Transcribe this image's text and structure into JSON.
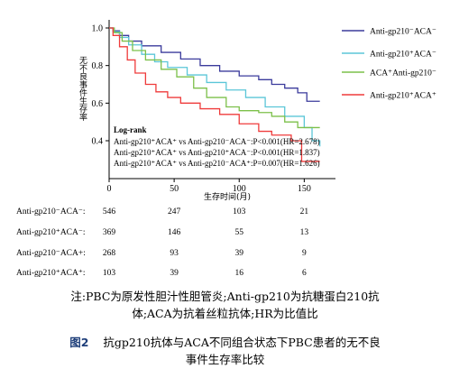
{
  "chart_data": {
    "type": "line",
    "title": "",
    "xlabel": "生存时间(月)",
    "ylabel": "无不良事件生存率",
    "xlim": [
      0,
      165
    ],
    "ylim": [
      0.33,
      1.02
    ],
    "x_ticks": [
      "0",
      "50",
      "100",
      "150"
    ],
    "y_ticks": [
      "0.4",
      "0.6",
      "0.8",
      "1.0"
    ],
    "grid": false,
    "legend_position": "right",
    "series": [
      {
        "name": "Anti-gp210⁻ACA⁻",
        "color": "#3b3b9c",
        "points": [
          [
            0,
            1.0
          ],
          [
            3,
            0.985
          ],
          [
            8,
            0.96
          ],
          [
            15,
            0.93
          ],
          [
            25,
            0.905
          ],
          [
            40,
            0.87
          ],
          [
            55,
            0.835
          ],
          [
            70,
            0.8
          ],
          [
            85,
            0.77
          ],
          [
            100,
            0.745
          ],
          [
            115,
            0.725
          ],
          [
            125,
            0.7
          ],
          [
            135,
            0.68
          ],
          [
            145,
            0.655
          ],
          [
            152,
            0.61
          ],
          [
            162,
            0.61
          ]
        ]
      },
      {
        "name": "Anti-gp210⁺ACA⁻",
        "color": "#5bc6d8",
        "points": [
          [
            0,
            1.0
          ],
          [
            3,
            0.98
          ],
          [
            8,
            0.95
          ],
          [
            15,
            0.91
          ],
          [
            25,
            0.86
          ],
          [
            35,
            0.82
          ],
          [
            45,
            0.79
          ],
          [
            60,
            0.75
          ],
          [
            75,
            0.71
          ],
          [
            90,
            0.67
          ],
          [
            105,
            0.63
          ],
          [
            120,
            0.58
          ],
          [
            135,
            0.53
          ],
          [
            150,
            0.47
          ],
          [
            156,
            0.4
          ],
          [
            162,
            0.37
          ]
        ]
      },
      {
        "name": "ACA⁺Anti-gp210⁻",
        "color": "#7cc04a",
        "points": [
          [
            0,
            1.0
          ],
          [
            4,
            0.975
          ],
          [
            10,
            0.93
          ],
          [
            18,
            0.88
          ],
          [
            28,
            0.83
          ],
          [
            40,
            0.78
          ],
          [
            52,
            0.74
          ],
          [
            65,
            0.68
          ],
          [
            75,
            0.63
          ],
          [
            90,
            0.58
          ],
          [
            100,
            0.56
          ],
          [
            115,
            0.55
          ],
          [
            125,
            0.53
          ],
          [
            135,
            0.5
          ],
          [
            145,
            0.47
          ],
          [
            162,
            0.47
          ]
        ]
      },
      {
        "name": "Anti-gp210⁺ACA⁺",
        "color": "#ef3b3b",
        "points": [
          [
            0,
            1.0
          ],
          [
            3,
            0.96
          ],
          [
            8,
            0.9
          ],
          [
            14,
            0.83
          ],
          [
            20,
            0.76
          ],
          [
            28,
            0.7
          ],
          [
            36,
            0.66
          ],
          [
            45,
            0.63
          ],
          [
            55,
            0.6
          ],
          [
            70,
            0.57
          ],
          [
            85,
            0.54
          ],
          [
            100,
            0.49
          ],
          [
            115,
            0.45
          ],
          [
            125,
            0.43
          ],
          [
            140,
            0.4
          ],
          [
            148,
            0.29
          ],
          [
            162,
            0.29
          ]
        ]
      }
    ],
    "annotation": {
      "heading": "Log-rank",
      "lines": [
        "Anti-gp210⁺ACA⁺ vs Anti-gp210⁻ACA⁻:P<0.001(HR=2.678)",
        "Anti-gp210⁺ACA⁺ vs Anti-gp210⁺ACA⁻:P<0.001(HR=1.837)",
        "Anti-gp210⁺ACA⁺ vs Anti-gp210⁻ACA⁺:P=0.007(HR=1.626)"
      ]
    },
    "risk_table": {
      "rows": [
        {
          "label": "Anti-gp210⁻ACA⁻:",
          "values": [
            "546",
            "247",
            "103",
            "21"
          ]
        },
        {
          "label": "Anti-gp210⁺ACA⁻:",
          "values": [
            "369",
            "146",
            "55",
            "13"
          ]
        },
        {
          "label": "Anti-gp210⁻ACA+:",
          "values": [
            "268",
            "93",
            "39",
            "9"
          ]
        },
        {
          "label": "Anti-gp210⁺ACA⁺:",
          "values": [
            "103",
            "39",
            "16",
            "6"
          ]
        }
      ]
    }
  },
  "notes": {
    "line1": "注:PBC为原发性胆汁性胆管炎;Anti-gp210为抗糖蛋白210抗",
    "line2": "体;ACA为抗着丝粒抗体;HR为比值比"
  },
  "figure": {
    "label": "图2",
    "title_line1": "抗gp210抗体与ACA不同组合状态下PBC患者的无不良",
    "title_line2": "事件生存率比较"
  }
}
